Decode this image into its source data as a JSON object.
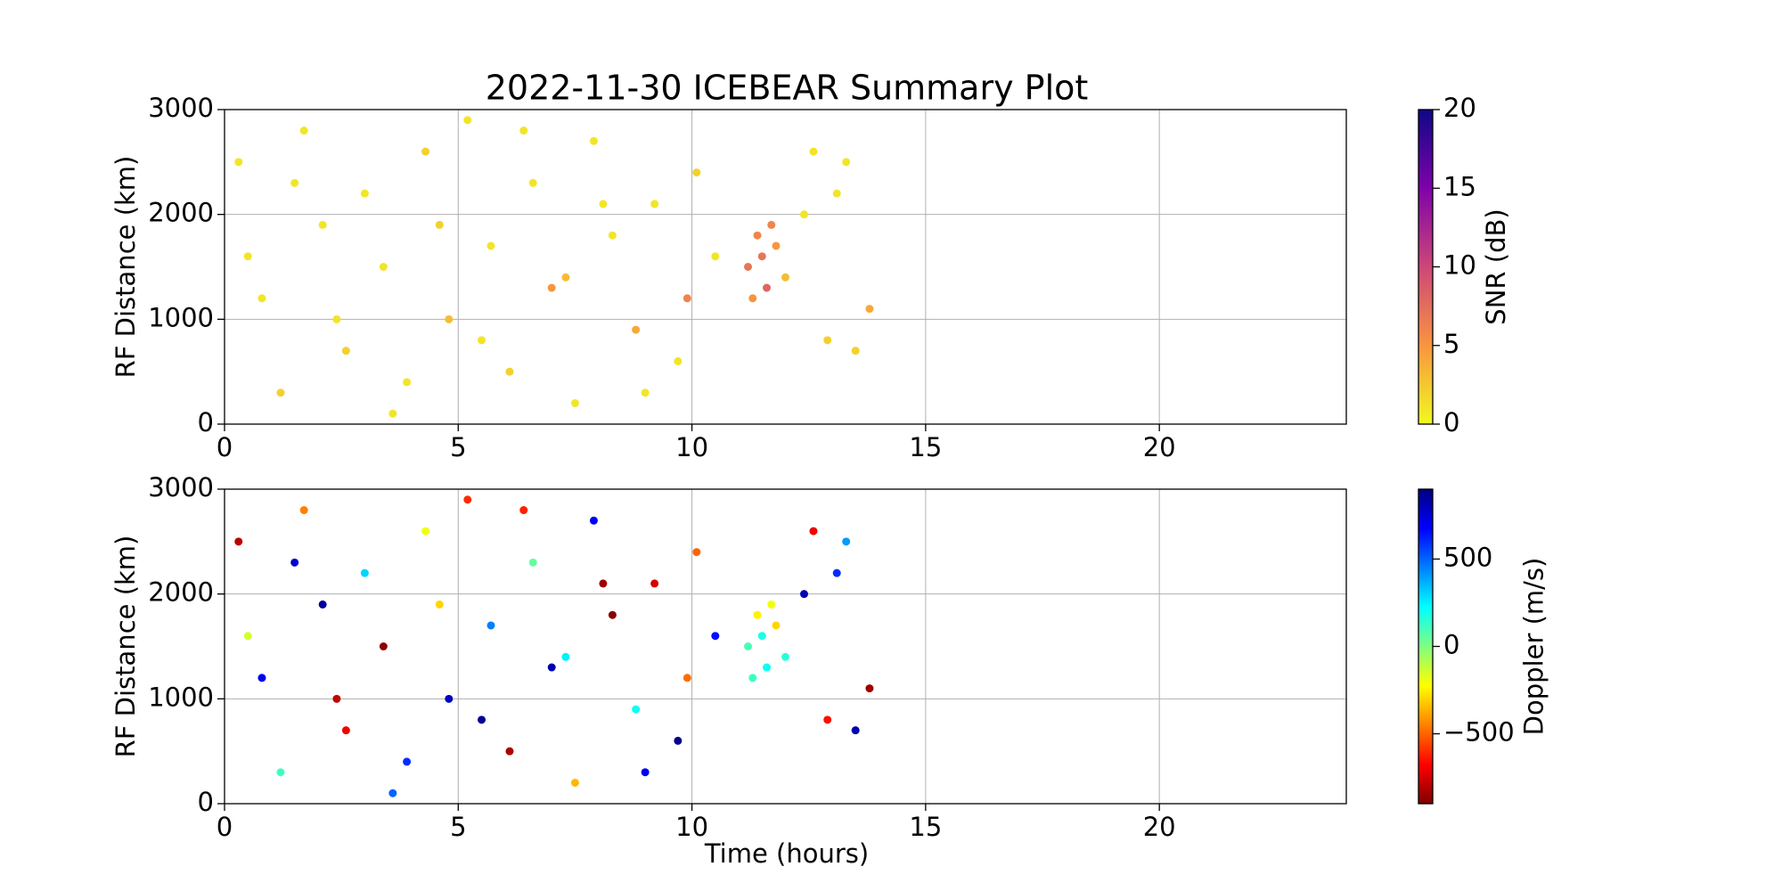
{
  "chart_data": [
    {
      "type": "scatter",
      "title": "2022-11-30 ICEBEAR Summary Plot",
      "ylabel": "RF Distance (km)",
      "xlim": [
        0,
        24
      ],
      "xticks": [
        0,
        5,
        10,
        15,
        20
      ],
      "ylim": [
        0,
        3000
      ],
      "yticks": [
        0,
        1000,
        2000,
        3000
      ],
      "grid": true,
      "x": [
        0.3,
        0.8,
        1.2,
        1.7,
        2.1,
        2.6,
        3.0,
        3.4,
        3.9,
        4.3,
        4.8,
        5.2,
        5.7,
        6.1,
        6.6,
        7.0,
        7.5,
        7.9,
        8.3,
        8.8,
        9.2,
        9.7,
        10.1,
        10.5,
        11.2,
        11.4,
        11.6,
        11.8,
        12.0,
        12.4,
        12.9,
        13.3,
        13.8,
        0.5,
        1.5,
        2.4,
        3.6,
        4.6,
        5.5,
        6.4,
        7.3,
        8.1,
        9.0,
        9.9,
        11.5,
        12.6,
        13.5,
        11.3,
        11.7,
        13.1
      ],
      "y": [
        2500,
        1200,
        300,
        2800,
        1900,
        700,
        2200,
        1500,
        400,
        2600,
        1000,
        2900,
        1700,
        500,
        2300,
        1300,
        200,
        2700,
        1800,
        900,
        2100,
        600,
        2400,
        1600,
        1500,
        1800,
        1300,
        1700,
        1400,
        2000,
        800,
        2500,
        1100,
        1600,
        2300,
        1000,
        100,
        1900,
        800,
        2800,
        1400,
        2100,
        300,
        1200,
        1600,
        2600,
        700,
        1200,
        1900,
        2200
      ],
      "c": [
        1,
        1,
        2,
        1,
        1,
        2,
        1,
        1,
        1,
        2,
        3,
        1,
        1,
        2,
        1,
        5,
        1,
        1,
        1,
        4,
        1,
        1,
        2,
        1,
        7,
        6,
        8,
        5,
        3,
        1,
        2,
        1,
        4,
        1,
        1,
        1,
        1,
        2,
        1,
        1,
        3,
        1,
        1,
        6,
        7,
        1,
        2,
        5,
        6,
        1
      ],
      "colorbar": {
        "label": "SNR (dB)",
        "lim": [
          0,
          20
        ],
        "ticks": [
          0,
          5,
          10,
          15,
          20
        ],
        "colormap": [
          "#f0f921",
          "#f89540",
          "#cc4778",
          "#7e03a8",
          "#0d0887"
        ]
      }
    },
    {
      "type": "scatter",
      "xlabel": "Time (hours)",
      "ylabel": "RF Distance (km)",
      "xlim": [
        0,
        24
      ],
      "xticks": [
        0,
        5,
        10,
        15,
        20
      ],
      "ylim": [
        0,
        3000
      ],
      "yticks": [
        0,
        1000,
        2000,
        3000
      ],
      "grid": true,
      "x": [
        0.3,
        0.8,
        1.2,
        1.7,
        2.1,
        2.6,
        3.0,
        3.4,
        3.9,
        4.3,
        4.8,
        5.2,
        5.7,
        6.1,
        6.6,
        7.0,
        7.5,
        7.9,
        8.3,
        8.8,
        9.2,
        9.7,
        10.1,
        10.5,
        11.2,
        11.4,
        11.6,
        11.8,
        12.0,
        12.4,
        12.9,
        13.3,
        13.8,
        0.5,
        1.5,
        2.4,
        3.6,
        4.6,
        5.5,
        6.4,
        7.3,
        8.1,
        9.0,
        9.9,
        11.5,
        12.6,
        13.5,
        11.3,
        11.7,
        13.1
      ],
      "y": [
        2500,
        1200,
        300,
        2800,
        1900,
        700,
        2200,
        1500,
        400,
        2600,
        1000,
        2900,
        1700,
        500,
        2300,
        1300,
        200,
        2700,
        1800,
        900,
        2100,
        600,
        2400,
        1600,
        1500,
        1800,
        1300,
        1700,
        1400,
        2000,
        800,
        2500,
        1100,
        1600,
        2300,
        1000,
        100,
        1900,
        800,
        2800,
        1400,
        2100,
        300,
        1200,
        1600,
        2600,
        700,
        1200,
        1900,
        2200
      ],
      "c": [
        -800,
        700,
        120,
        -450,
        850,
        -700,
        300,
        -880,
        600,
        -200,
        780,
        -600,
        450,
        -820,
        50,
        820,
        -350,
        700,
        -880,
        200,
        -750,
        880,
        -500,
        650,
        100,
        -250,
        200,
        -300,
        150,
        800,
        -650,
        400,
        -850,
        -150,
        750,
        -780,
        500,
        -300,
        860,
        -620,
        250,
        -840,
        700,
        -480,
        180,
        -700,
        820,
        120,
        -200,
        600
      ],
      "colorbar": {
        "label": "Doppler (m/s)",
        "lim": [
          -900,
          900
        ],
        "ticks": [
          {
            "value": -500,
            "label": "−500"
          },
          0,
          500
        ],
        "colormap": [
          "#7f0000",
          "#ff0000",
          "#ff8000",
          "#ffff00",
          "#80ff80",
          "#00ffff",
          "#0080ff",
          "#0000ff",
          "#00007f"
        ]
      }
    }
  ]
}
